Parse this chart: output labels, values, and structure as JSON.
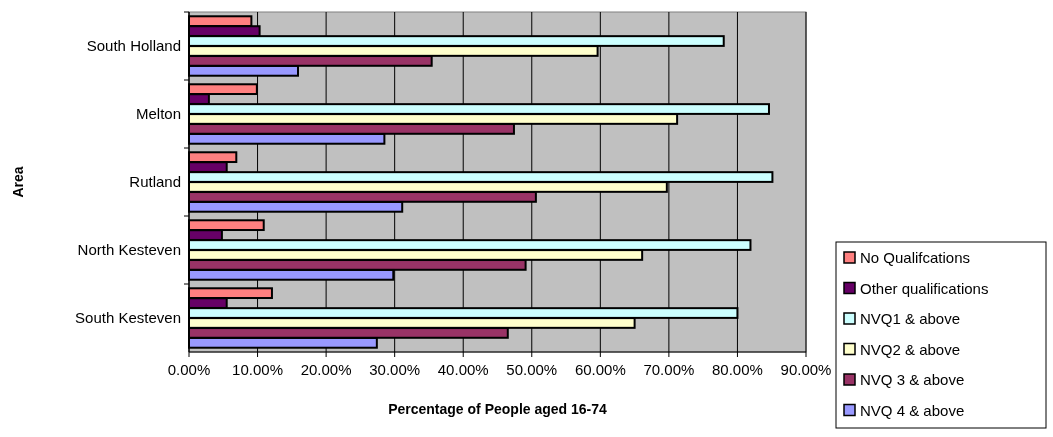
{
  "chart_data": {
    "type": "bar",
    "orientation": "horizontal",
    "xlabel": "Percentage of People aged 16-74",
    "ylabel": "Area",
    "categories": [
      "South Holland",
      "Melton",
      "Rutland",
      "North Kesteven",
      "South Kesteven"
    ],
    "series": [
      {
        "name": "No Qualifcations",
        "color": "#ff8080",
        "values": [
          9.1,
          9.9,
          6.9,
          10.9,
          12.1
        ]
      },
      {
        "name": "Other qualifications",
        "color": "#660066",
        "values": [
          10.3,
          2.9,
          5.5,
          4.8,
          5.5
        ]
      },
      {
        "name": "NVQ1 & above",
        "color": "#ccffff",
        "values": [
          78.0,
          84.6,
          85.1,
          81.9,
          80.0
        ]
      },
      {
        "name": "NVQ2 & above",
        "color": "#ffffcc",
        "values": [
          59.6,
          71.2,
          69.7,
          66.1,
          65.0
        ]
      },
      {
        "name": "NVQ 3 & above",
        "color": "#993366",
        "values": [
          35.4,
          47.4,
          50.6,
          49.1,
          46.5
        ]
      },
      {
        "name": "NVQ 4 & above",
        "color": "#9999ff",
        "values": [
          15.9,
          28.5,
          31.1,
          29.8,
          27.4
        ]
      }
    ],
    "xlim": [
      0,
      90
    ],
    "xticks": [
      {
        "value": 0,
        "label": "0.00%"
      },
      {
        "value": 10,
        "label": "10.00%"
      },
      {
        "value": 20,
        "label": "20.00%"
      },
      {
        "value": 30,
        "label": "30.00%"
      },
      {
        "value": 40,
        "label": "40.00%"
      },
      {
        "value": 50,
        "label": "50.00%"
      },
      {
        "value": 60,
        "label": "60.00%"
      },
      {
        "value": 70,
        "label": "70.00%"
      },
      {
        "value": 80,
        "label": "80.00%"
      },
      {
        "value": 90,
        "label": "90.00%"
      }
    ],
    "grid": "x",
    "legend": "right"
  }
}
